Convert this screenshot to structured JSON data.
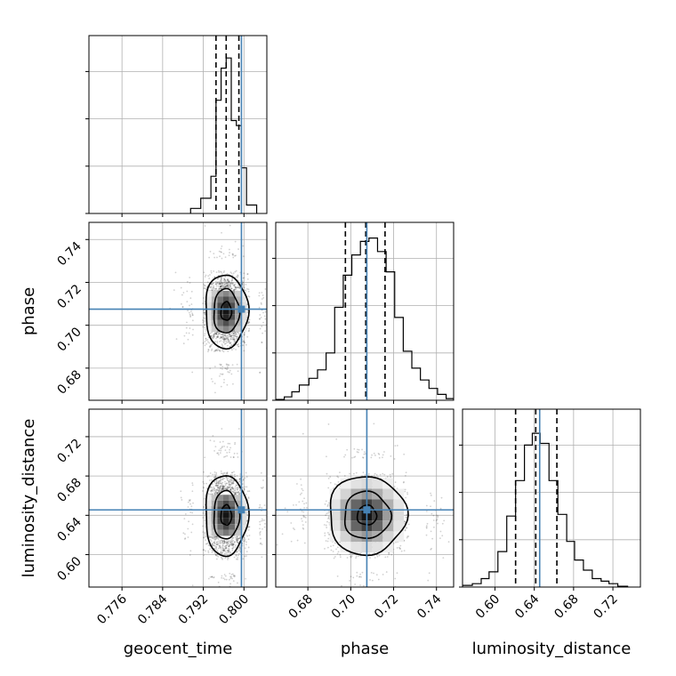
{
  "chart_data": {
    "type": "corner",
    "parameters": [
      "geocent_time",
      "phase",
      "luminosity_distance"
    ],
    "axis_labels": {
      "bottom": [
        "geocent_time",
        "phase",
        "luminosity_distance"
      ],
      "left": [
        "phase",
        "luminosity_distance"
      ]
    },
    "ranges": {
      "geocent_time": [
        0.7695,
        0.8045
      ],
      "phase": [
        0.665,
        0.748
      ],
      "luminosity_distance": [
        0.567,
        0.748
      ]
    },
    "ticks": {
      "geocent_time": [
        0.776,
        0.784,
        0.792,
        0.8
      ],
      "phase": [
        0.68,
        0.7,
        0.72,
        0.74
      ],
      "luminosity_distance": [
        0.6,
        0.64,
        0.68,
        0.72
      ]
    },
    "tick_labels": {
      "geocent_time": [
        "0.776",
        "0.784",
        "0.792",
        "0.800"
      ],
      "phase": [
        "0.68",
        "0.70",
        "0.72",
        "0.74"
      ],
      "luminosity_distance": [
        "0.60",
        "0.64",
        "0.68",
        "0.72"
      ]
    },
    "truths": {
      "geocent_time": 0.7995,
      "phase": 0.7075,
      "luminosity_distance": 0.6455
    },
    "quantiles": {
      "geocent_time": [
        0.7945,
        0.7965,
        0.799
      ],
      "phase": [
        0.6975,
        0.707,
        0.716
      ],
      "luminosity_distance": [
        0.621,
        0.6415,
        0.663
      ]
    },
    "histograms": {
      "geocent_time": {
        "edges": [
          0.7895,
          0.7915,
          0.7935,
          0.7945,
          0.7955,
          0.7965,
          0.7975,
          0.7985,
          0.7995,
          0.8005,
          0.8025
        ],
        "counts": [
          0.03,
          0.09,
          0.22,
          0.67,
          0.86,
          0.92,
          0.55,
          0.52,
          0.27,
          0.05
        ]
      },
      "phase": {
        "edges": [
          0.6645,
          0.669,
          0.6725,
          0.676,
          0.6805,
          0.6845,
          0.6885,
          0.6925,
          0.6965,
          0.7005,
          0.7045,
          0.7085,
          0.7125,
          0.7165,
          0.7205,
          0.7245,
          0.7285,
          0.7325,
          0.7365,
          0.7405,
          0.7445,
          0.748
        ],
        "counts": [
          0.005,
          0.02,
          0.05,
          0.09,
          0.13,
          0.18,
          0.28,
          0.55,
          0.74,
          0.86,
          0.94,
          0.96,
          0.88,
          0.76,
          0.49,
          0.29,
          0.19,
          0.12,
          0.07,
          0.035,
          0.01
        ]
      },
      "luminosity_distance": {
        "edges": [
          0.567,
          0.577,
          0.586,
          0.594,
          0.603,
          0.612,
          0.621,
          0.63,
          0.638,
          0.646,
          0.655,
          0.664,
          0.673,
          0.681,
          0.69,
          0.699,
          0.708,
          0.716,
          0.725,
          0.735
        ],
        "counts": [
          0.01,
          0.02,
          0.05,
          0.09,
          0.21,
          0.42,
          0.63,
          0.84,
          0.91,
          0.85,
          0.63,
          0.43,
          0.27,
          0.16,
          0.1,
          0.05,
          0.035,
          0.02,
          0.005
        ]
      }
    },
    "pairs": [
      {
        "x": "geocent_time",
        "y": "phase",
        "center": [
          0.7965,
          0.7065
        ],
        "spread": [
          0.0021,
          0.0086
        ],
        "contour_levels": [
          0.5,
          1.2,
          2.0
        ]
      },
      {
        "x": "geocent_time",
        "y": "luminosity_distance",
        "center": [
          0.7965,
          0.64
        ],
        "spread": [
          0.0021,
          0.0205
        ],
        "contour_levels": [
          0.5,
          1.2,
          2.0
        ]
      },
      {
        "x": "phase",
        "y": "luminosity_distance",
        "center": [
          0.7075,
          0.64
        ],
        "spread": [
          0.009,
          0.02
        ],
        "contour_levels": [
          0.5,
          1.2,
          2.0
        ]
      }
    ],
    "colors": {
      "truth": "#4682b4",
      "histogram": "#000000",
      "quantile": "#000000",
      "grid": "#b0b0b0",
      "scatter": "#000000"
    },
    "grid": true
  }
}
